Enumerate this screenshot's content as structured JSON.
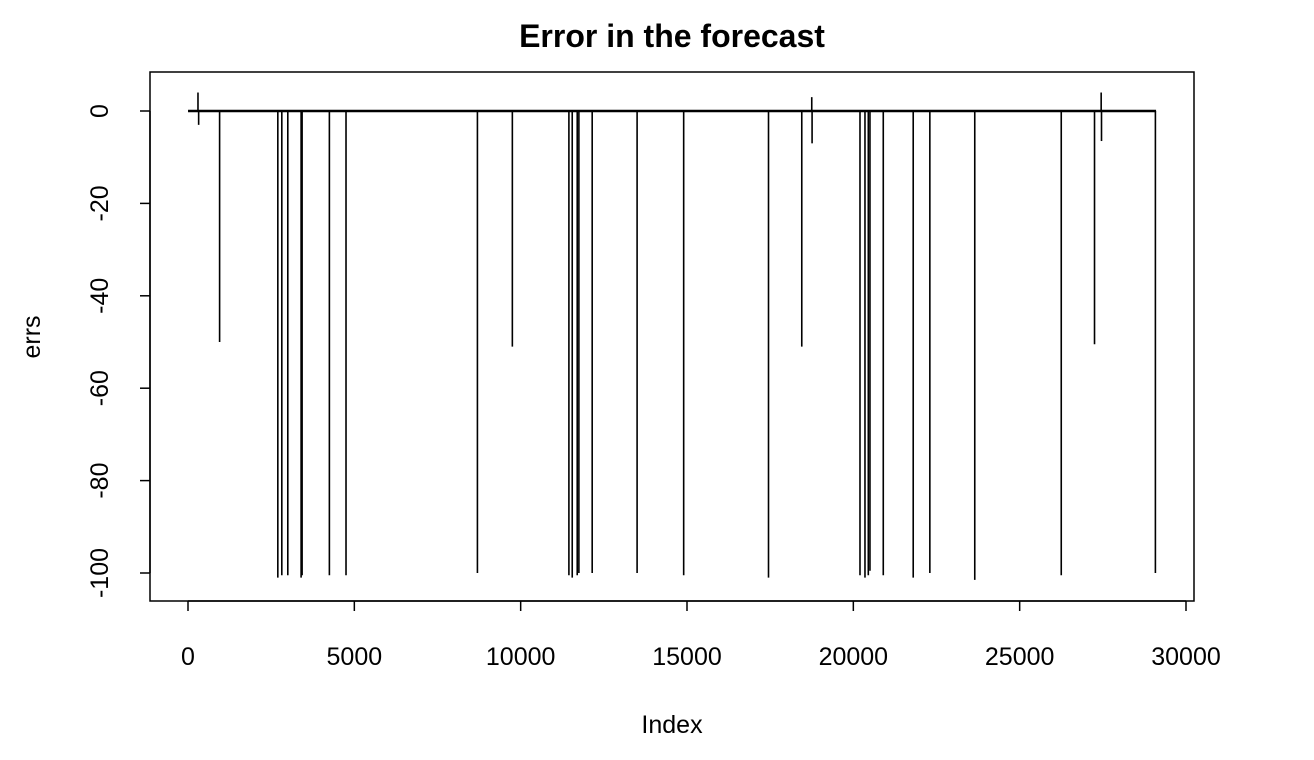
{
  "chart_data": {
    "type": "line",
    "title": "Error in the forecast",
    "xlabel": "Index",
    "ylabel": "errs",
    "xlim": [
      0,
      30000
    ],
    "ylim": [
      -106,
      8
    ],
    "x_ticks": [
      0,
      5000,
      10000,
      15000,
      20000,
      25000,
      30000
    ],
    "x_tick_labels": [
      "0",
      "5000",
      "10000",
      "15000",
      "20000",
      "25000",
      "30000"
    ],
    "y_ticks": [
      0,
      -20,
      -40,
      -60,
      -80,
      -100
    ],
    "y_tick_labels": [
      "0",
      "-20",
      "-40",
      "-60",
      "-80",
      "-100"
    ],
    "grid": false,
    "legend": "none",
    "series": [
      {
        "x_range": [
          1,
          29100
        ],
        "baseline": 0,
        "color": "#000000",
        "spikes": [
          {
            "x": 300,
            "y": 4
          },
          {
            "x": 320,
            "y": -3
          },
          {
            "x": 950,
            "y": -50
          },
          {
            "x": 2700,
            "y": -101
          },
          {
            "x": 2820,
            "y": -100.5
          },
          {
            "x": 3000,
            "y": -100.5
          },
          {
            "x": 3400,
            "y": -101
          },
          {
            "x": 3430,
            "y": -100.5
          },
          {
            "x": 4250,
            "y": -100.5
          },
          {
            "x": 4750,
            "y": -100.5
          },
          {
            "x": 8700,
            "y": -100
          },
          {
            "x": 9750,
            "y": -51
          },
          {
            "x": 11450,
            "y": -100.5
          },
          {
            "x": 11550,
            "y": -101
          },
          {
            "x": 11700,
            "y": -100.5
          },
          {
            "x": 11750,
            "y": -100
          },
          {
            "x": 12150,
            "y": -100
          },
          {
            "x": 13500,
            "y": -100
          },
          {
            "x": 14900,
            "y": -100.5
          },
          {
            "x": 17450,
            "y": -101
          },
          {
            "x": 18450,
            "y": -51
          },
          {
            "x": 18750,
            "y": 3
          },
          {
            "x": 18760,
            "y": -7
          },
          {
            "x": 20200,
            "y": -100.5
          },
          {
            "x": 20350,
            "y": -101
          },
          {
            "x": 20450,
            "y": -100.5
          },
          {
            "x": 20500,
            "y": -99.5
          },
          {
            "x": 20900,
            "y": -100.5
          },
          {
            "x": 21800,
            "y": -101
          },
          {
            "x": 22300,
            "y": -100
          },
          {
            "x": 23650,
            "y": -101.5
          },
          {
            "x": 26250,
            "y": -100.5
          },
          {
            "x": 27250,
            "y": -50.5
          },
          {
            "x": 27450,
            "y": 4
          },
          {
            "x": 27460,
            "y": -6.5
          },
          {
            "x": 29080,
            "y": -100
          }
        ]
      }
    ]
  }
}
